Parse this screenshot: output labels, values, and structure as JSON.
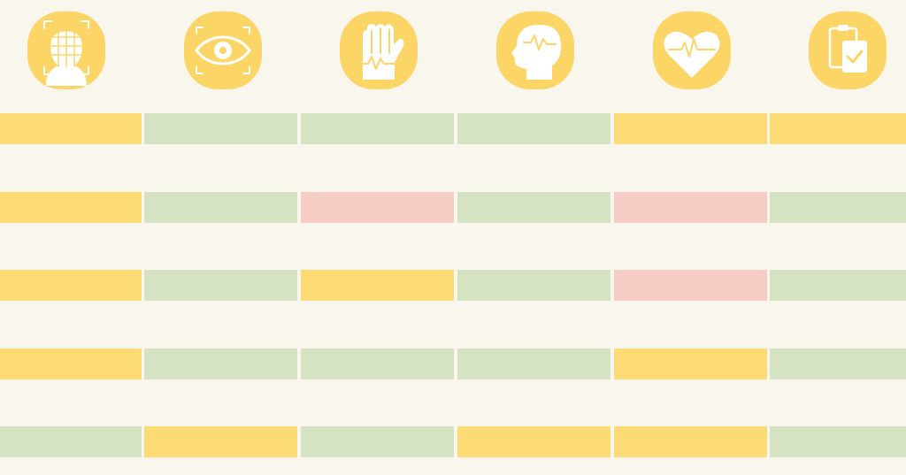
{
  "table": {
    "rows": [
      [
        "#fcdb75",
        "#d5e3c2",
        "#d5e3c2",
        "#d5e3c2",
        "#fcdb75",
        "#fcdb75"
      ],
      [
        "#fcdb75",
        "#d5e3c2",
        "#f5cdc4",
        "#d5e3c2",
        "#f5cdc4",
        "#d5e3c2"
      ],
      [
        "#fcdb75",
        "#d5e3c2",
        "#fcdb75",
        "#d5e3c2",
        "#f5cdc4",
        "#d5e3c2"
      ],
      [
        "#fcdb75",
        "#d5e3c2",
        "#d5e3c2",
        "#d5e3c2",
        "#fcdb75",
        "#d5e3c2"
      ],
      [
        "#d5e3c2",
        "#fcdb75",
        "#d5e3c2",
        "#fcdb75",
        "#fcdb75",
        "#d5e3c2"
      ]
    ]
  }
}
